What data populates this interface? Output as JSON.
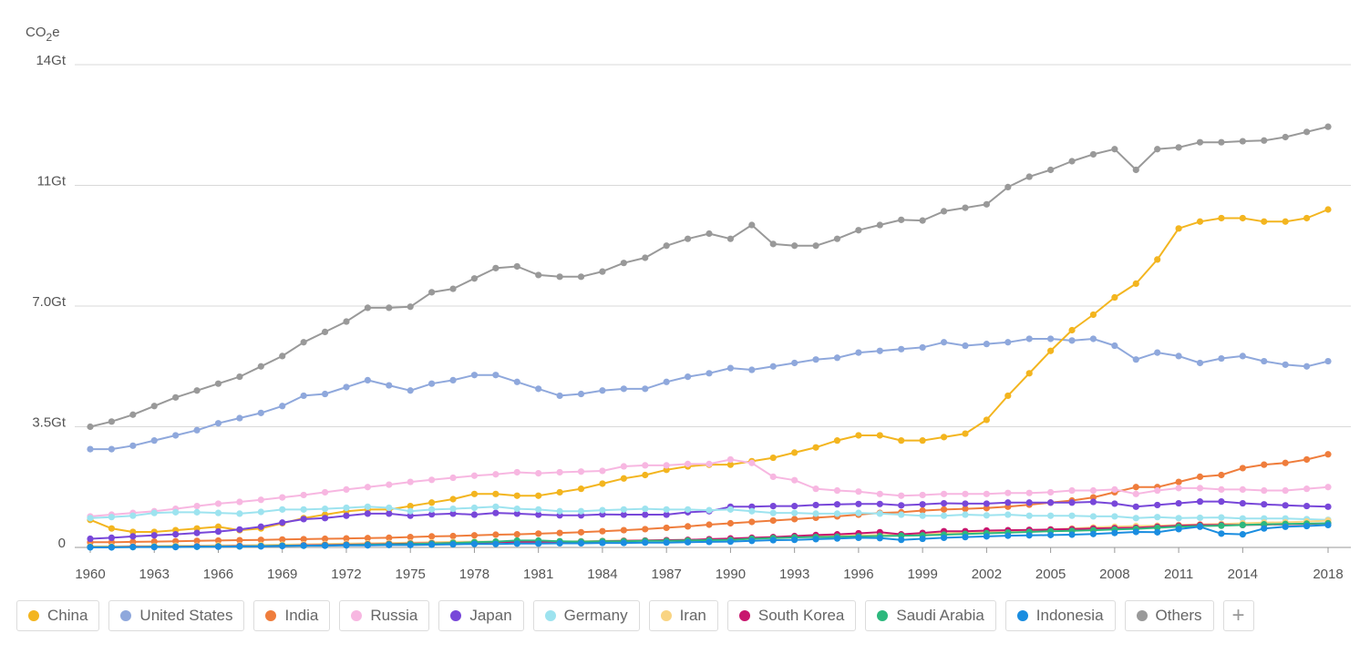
{
  "chart_data": {
    "type": "line",
    "unit_label_main": "CO",
    "unit_label_sub": "2",
    "unit_label_suffix": "e",
    "ylim": [
      0,
      14
    ],
    "y_ticks": [
      {
        "value": 0,
        "label": "0"
      },
      {
        "value": 3.5,
        "label": "3.5Gt"
      },
      {
        "value": 7,
        "label": "7.0Gt"
      },
      {
        "value": 10.5,
        "label": "11Gt"
      },
      {
        "value": 14,
        "label": "14Gt"
      }
    ],
    "x_ticks": [
      1960,
      1963,
      1966,
      1969,
      1972,
      1975,
      1978,
      1981,
      1984,
      1987,
      1990,
      1993,
      1996,
      1999,
      2002,
      2005,
      2008,
      2011,
      2014,
      2018
    ],
    "grid": "horizontal",
    "legend_position": "bottom",
    "x": [
      1960,
      1961,
      1962,
      1963,
      1964,
      1965,
      1966,
      1967,
      1968,
      1969,
      1970,
      1971,
      1972,
      1973,
      1974,
      1975,
      1976,
      1977,
      1978,
      1979,
      1980,
      1981,
      1982,
      1983,
      1984,
      1985,
      1986,
      1987,
      1988,
      1989,
      1990,
      1991,
      1992,
      1993,
      1994,
      1995,
      1996,
      1997,
      1998,
      1999,
      2000,
      2001,
      2002,
      2003,
      2004,
      2005,
      2006,
      2007,
      2008,
      2009,
      2010,
      2011,
      2012,
      2013,
      2014,
      2015,
      2016,
      2017,
      2018
    ],
    "series": [
      {
        "name": "Others",
        "color": "#999999",
        "values": [
          3.5,
          3.65,
          3.85,
          4.1,
          4.35,
          4.55,
          4.75,
          4.95,
          5.25,
          5.55,
          5.95,
          6.25,
          6.55,
          6.95,
          6.95,
          6.98,
          7.4,
          7.5,
          7.8,
          8.1,
          8.15,
          7.9,
          7.85,
          7.85,
          8.0,
          8.25,
          8.4,
          8.75,
          8.95,
          9.1,
          8.95,
          9.35,
          8.8,
          8.75,
          8.75,
          8.95,
          9.2,
          9.35,
          9.5,
          9.48,
          9.75,
          9.85,
          9.95,
          10.45,
          10.75,
          10.95,
          11.2,
          11.4,
          11.55,
          10.95,
          11.55,
          11.6,
          11.75,
          11.75,
          11.78,
          11.8,
          11.9,
          12.05,
          12.2
        ]
      },
      {
        "name": "United States",
        "color": "#8fa8dc",
        "values": [
          2.85,
          2.85,
          2.95,
          3.1,
          3.25,
          3.4,
          3.6,
          3.75,
          3.9,
          4.1,
          4.4,
          4.45,
          4.65,
          4.85,
          4.7,
          4.55,
          4.75,
          4.85,
          5.0,
          5.0,
          4.8,
          4.6,
          4.4,
          4.45,
          4.55,
          4.6,
          4.6,
          4.8,
          4.95,
          5.05,
          5.2,
          5.15,
          5.25,
          5.35,
          5.45,
          5.5,
          5.65,
          5.7,
          5.75,
          5.8,
          5.95,
          5.85,
          5.9,
          5.95,
          6.05,
          6.05,
          6.0,
          6.05,
          5.85,
          5.45,
          5.65,
          5.55,
          5.35,
          5.48,
          5.55,
          5.4,
          5.3,
          5.25,
          5.4
        ]
      },
      {
        "name": "China",
        "color": "#f3b51f",
        "values": [
          0.8,
          0.55,
          0.45,
          0.45,
          0.5,
          0.55,
          0.6,
          0.5,
          0.55,
          0.7,
          0.85,
          0.95,
          1.05,
          1.1,
          1.1,
          1.2,
          1.3,
          1.4,
          1.55,
          1.55,
          1.5,
          1.5,
          1.6,
          1.7,
          1.85,
          2.0,
          2.1,
          2.25,
          2.35,
          2.4,
          2.4,
          2.5,
          2.6,
          2.75,
          2.9,
          3.1,
          3.25,
          3.25,
          3.1,
          3.1,
          3.2,
          3.3,
          3.7,
          4.4,
          5.05,
          5.7,
          6.3,
          6.75,
          7.25,
          7.65,
          8.35,
          9.25,
          9.45,
          9.55,
          9.55,
          9.45,
          9.45,
          9.55,
          9.8
        ]
      },
      {
        "name": "India",
        "color": "#ef7d3c",
        "values": [
          0.15,
          0.15,
          0.16,
          0.17,
          0.18,
          0.19,
          0.2,
          0.21,
          0.22,
          0.23,
          0.24,
          0.25,
          0.26,
          0.27,
          0.28,
          0.3,
          0.32,
          0.33,
          0.35,
          0.37,
          0.38,
          0.4,
          0.42,
          0.44,
          0.47,
          0.5,
          0.53,
          0.57,
          0.61,
          0.66,
          0.7,
          0.74,
          0.78,
          0.82,
          0.86,
          0.9,
          0.95,
          1.0,
          1.02,
          1.07,
          1.1,
          1.12,
          1.14,
          1.18,
          1.24,
          1.3,
          1.36,
          1.45,
          1.6,
          1.75,
          1.75,
          1.9,
          2.05,
          2.1,
          2.3,
          2.4,
          2.45,
          2.55,
          2.7
        ]
      },
      {
        "name": "Russia",
        "color": "#f7b7e1",
        "values": [
          0.9,
          0.95,
          1.0,
          1.05,
          1.12,
          1.2,
          1.27,
          1.32,
          1.38,
          1.45,
          1.52,
          1.6,
          1.68,
          1.75,
          1.82,
          1.9,
          1.96,
          2.02,
          2.08,
          2.12,
          2.18,
          2.15,
          2.18,
          2.2,
          2.22,
          2.35,
          2.38,
          2.38,
          2.42,
          2.42,
          2.55,
          2.45,
          2.05,
          1.95,
          1.7,
          1.65,
          1.62,
          1.55,
          1.5,
          1.52,
          1.55,
          1.55,
          1.55,
          1.58,
          1.58,
          1.6,
          1.65,
          1.65,
          1.68,
          1.55,
          1.65,
          1.72,
          1.72,
          1.68,
          1.68,
          1.65,
          1.65,
          1.7,
          1.75
        ]
      },
      {
        "name": "Japan",
        "color": "#7847d9",
        "values": [
          0.25,
          0.28,
          0.32,
          0.35,
          0.38,
          0.42,
          0.46,
          0.52,
          0.6,
          0.72,
          0.82,
          0.85,
          0.92,
          0.98,
          0.98,
          0.92,
          0.96,
          0.98,
          0.95,
          1.0,
          0.98,
          0.95,
          0.93,
          0.93,
          0.96,
          0.95,
          0.95,
          0.95,
          1.02,
          1.05,
          1.18,
          1.18,
          1.2,
          1.2,
          1.23,
          1.25,
          1.26,
          1.26,
          1.22,
          1.25,
          1.28,
          1.27,
          1.27,
          1.3,
          1.3,
          1.3,
          1.3,
          1.32,
          1.27,
          1.18,
          1.23,
          1.28,
          1.33,
          1.33,
          1.28,
          1.25,
          1.22,
          1.2,
          1.18
        ]
      },
      {
        "name": "Germany",
        "color": "#9de3ef",
        "values": [
          0.85,
          0.88,
          0.92,
          1.0,
          1.02,
          1.02,
          1.0,
          0.98,
          1.03,
          1.1,
          1.1,
          1.12,
          1.15,
          1.18,
          1.15,
          1.05,
          1.1,
          1.12,
          1.15,
          1.18,
          1.12,
          1.1,
          1.05,
          1.05,
          1.08,
          1.1,
          1.12,
          1.1,
          1.1,
          1.08,
          1.1,
          1.05,
          1.0,
          1.0,
          0.98,
          0.98,
          1.0,
          0.98,
          0.95,
          0.92,
          0.92,
          0.95,
          0.93,
          0.95,
          0.92,
          0.92,
          0.92,
          0.9,
          0.9,
          0.85,
          0.88,
          0.85,
          0.86,
          0.87,
          0.84,
          0.84,
          0.84,
          0.82,
          0.8
        ]
      },
      {
        "name": "Iran",
        "color": "#f9d482",
        "values": [
          0.03,
          0.03,
          0.04,
          0.04,
          0.05,
          0.05,
          0.06,
          0.06,
          0.07,
          0.08,
          0.09,
          0.1,
          0.11,
          0.12,
          0.13,
          0.14,
          0.15,
          0.16,
          0.17,
          0.17,
          0.16,
          0.16,
          0.17,
          0.18,
          0.19,
          0.2,
          0.2,
          0.21,
          0.22,
          0.23,
          0.24,
          0.26,
          0.28,
          0.3,
          0.32,
          0.33,
          0.35,
          0.36,
          0.37,
          0.39,
          0.41,
          0.43,
          0.45,
          0.47,
          0.49,
          0.52,
          0.55,
          0.58,
          0.6,
          0.62,
          0.63,
          0.65,
          0.67,
          0.68,
          0.7,
          0.72,
          0.73,
          0.75,
          0.78
        ]
      },
      {
        "name": "South Korea",
        "color": "#c8166e",
        "values": [
          0.01,
          0.01,
          0.02,
          0.02,
          0.02,
          0.03,
          0.03,
          0.04,
          0.04,
          0.05,
          0.06,
          0.07,
          0.08,
          0.09,
          0.1,
          0.11,
          0.12,
          0.13,
          0.14,
          0.15,
          0.16,
          0.16,
          0.17,
          0.17,
          0.18,
          0.19,
          0.2,
          0.21,
          0.22,
          0.24,
          0.26,
          0.28,
          0.3,
          0.33,
          0.36,
          0.38,
          0.41,
          0.44,
          0.38,
          0.42,
          0.47,
          0.47,
          0.49,
          0.5,
          0.51,
          0.52,
          0.53,
          0.55,
          0.56,
          0.57,
          0.6,
          0.63,
          0.65,
          0.65,
          0.65,
          0.66,
          0.67,
          0.68,
          0.7
        ]
      },
      {
        "name": "Saudi Arabia",
        "color": "#2db87d",
        "values": [
          0.01,
          0.01,
          0.01,
          0.02,
          0.02,
          0.02,
          0.03,
          0.03,
          0.04,
          0.05,
          0.05,
          0.06,
          0.07,
          0.08,
          0.09,
          0.1,
          0.11,
          0.13,
          0.15,
          0.17,
          0.2,
          0.2,
          0.18,
          0.17,
          0.18,
          0.18,
          0.19,
          0.19,
          0.2,
          0.21,
          0.22,
          0.25,
          0.27,
          0.29,
          0.3,
          0.31,
          0.32,
          0.33,
          0.34,
          0.35,
          0.37,
          0.39,
          0.41,
          0.43,
          0.45,
          0.47,
          0.48,
          0.5,
          0.52,
          0.54,
          0.57,
          0.6,
          0.62,
          0.63,
          0.65,
          0.67,
          0.68,
          0.69,
          0.7
        ]
      },
      {
        "name": "Indonesia",
        "color": "#1a8de0",
        "values": [
          0.0,
          0.0,
          0.01,
          0.01,
          0.01,
          0.02,
          0.02,
          0.03,
          0.03,
          0.04,
          0.05,
          0.05,
          0.06,
          0.06,
          0.07,
          0.07,
          0.08,
          0.09,
          0.1,
          0.1,
          0.11,
          0.11,
          0.12,
          0.12,
          0.13,
          0.13,
          0.14,
          0.14,
          0.15,
          0.16,
          0.17,
          0.19,
          0.21,
          0.22,
          0.24,
          0.26,
          0.28,
          0.27,
          0.22,
          0.25,
          0.28,
          0.3,
          0.32,
          0.34,
          0.35,
          0.36,
          0.37,
          0.39,
          0.42,
          0.45,
          0.44,
          0.53,
          0.6,
          0.4,
          0.38,
          0.55,
          0.6,
          0.62,
          0.65
        ]
      }
    ]
  },
  "legend": {
    "items": [
      {
        "label": "China",
        "color": "#f3b51f"
      },
      {
        "label": "United States",
        "color": "#8fa8dc"
      },
      {
        "label": "India",
        "color": "#ef7d3c"
      },
      {
        "label": "Russia",
        "color": "#f7b7e1"
      },
      {
        "label": "Japan",
        "color": "#7847d9"
      },
      {
        "label": "Germany",
        "color": "#9de3ef"
      },
      {
        "label": "Iran",
        "color": "#f9d482"
      },
      {
        "label": "South Korea",
        "color": "#c8166e"
      },
      {
        "label": "Saudi Arabia",
        "color": "#2db87d"
      },
      {
        "label": "Indonesia",
        "color": "#1a8de0"
      },
      {
        "label": "Others",
        "color": "#999999"
      }
    ],
    "add_label": "+"
  }
}
